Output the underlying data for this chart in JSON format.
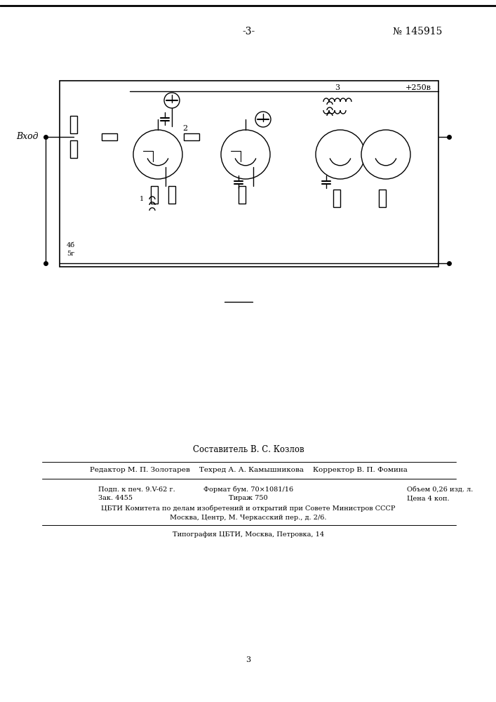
{
  "page_number": "-3-",
  "patent_number": "№ 145915",
  "circuit_label_input": "Вход",
  "circuit_label_voltage": "+250в",
  "circuit_label_4b": "4б",
  "circuit_label_5g": "5г",
  "circuit_label_2": "2",
  "circuit_label_1": "1",
  "circuit_label_3": "3",
  "composer_line": "Составитель В. С. Козлов",
  "editor_line": "Редактор М. П. Золотарев    Техред А. А. Камышникова    Корректор В. П. Фомина",
  "info_line1": "Подп. к печ. 9.V-62 г.",
  "info_line2": "Формат бум. 70×1081/16",
  "info_line3": "Объем 0,26 изд. л.",
  "info_line4": "Зак. 4455",
  "info_line5": "Тираж 750",
  "info_line6": "Цена 4 коп.",
  "info_line7": "ЦБТИ Комитета по делам изобретений и открытий при Совете Министров СССР",
  "info_line8": "Москва, Центр, М. Черкасский пер., д. 2/6.",
  "info_line9": "Типография ЦБТИ, Москва, Петровка, 14",
  "page_num_bottom": "3",
  "bg_color": "#ffffff",
  "line_color": "#000000",
  "text_color": "#000000"
}
